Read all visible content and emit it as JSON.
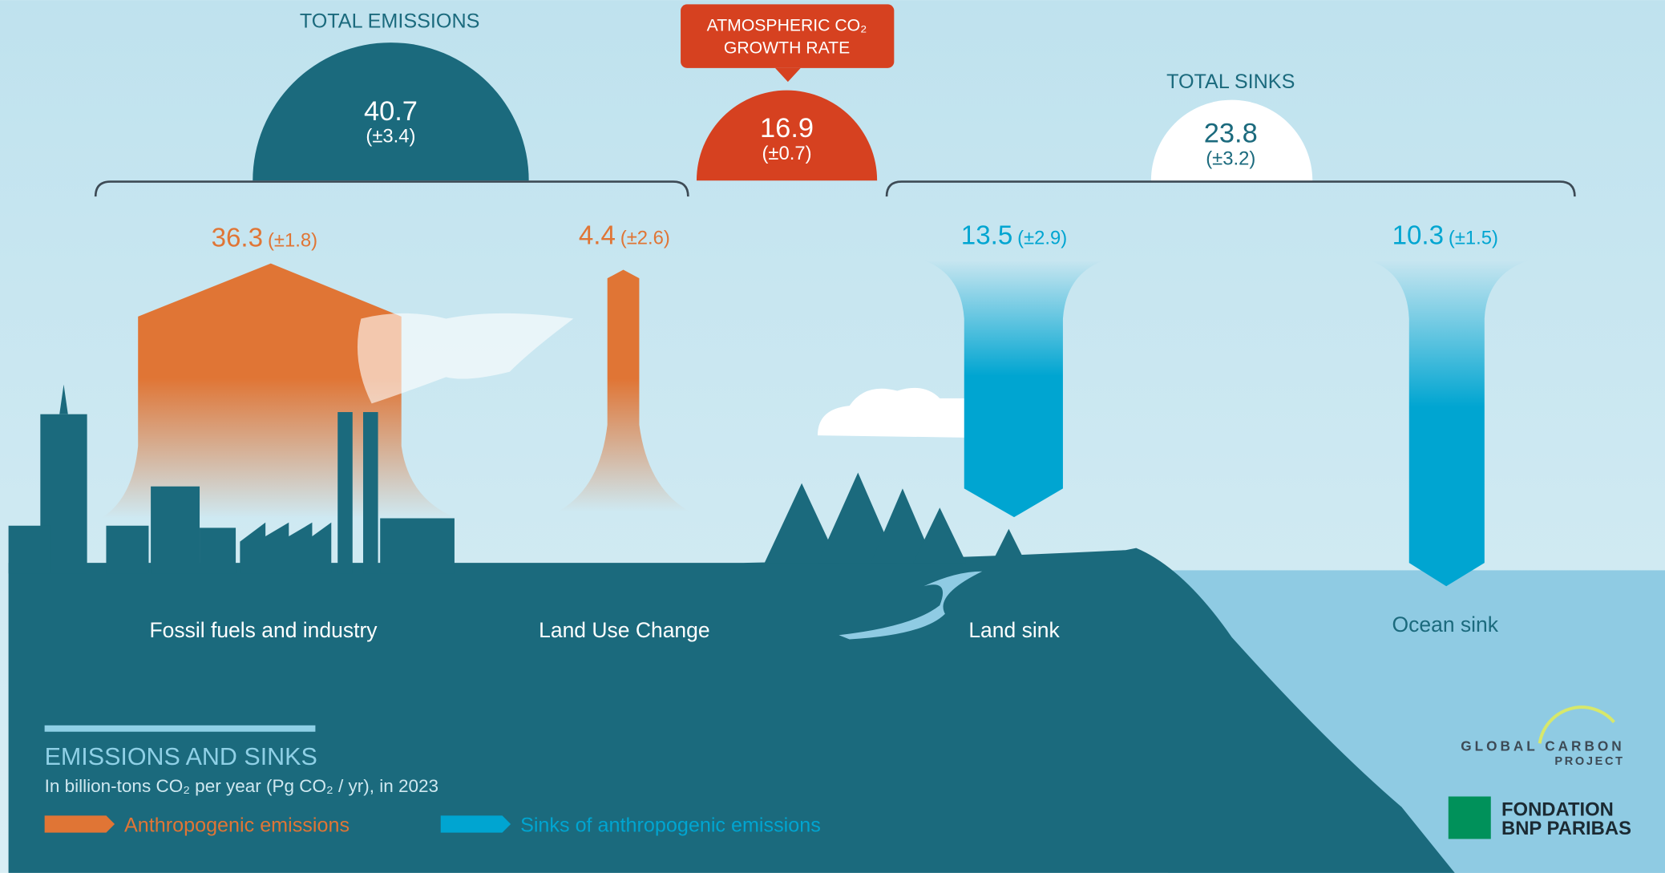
{
  "total_emissions": {
    "label": "TOTAL EMISSIONS",
    "value": 40.7,
    "uncertainty": "(±3.4)"
  },
  "growth_rate": {
    "label_lines": [
      "ATMOSPHERIC CO₂",
      "GROWTH RATE"
    ],
    "value": 16.9,
    "uncertainty": "(±0.7)"
  },
  "total_sinks": {
    "label": "TOTAL SINKS",
    "value": 23.8,
    "uncertainty": "(±3.2)"
  },
  "flows": [
    {
      "name": "Fossil fuels and industry",
      "value": 36.3,
      "uncertainty": "(±1.8)"
    },
    {
      "name": "Land Use Change",
      "value": 4.4,
      "uncertainty": "(±2.6)"
    },
    {
      "name": "Land sink",
      "value": 13.5,
      "uncertainty": "(±2.9)"
    },
    {
      "name": "Ocean sink",
      "value": 10.3,
      "uncertainty": "(±1.5)"
    }
  ],
  "legend": {
    "title": "EMISSIONS AND SINKS",
    "subtitle": "In billion-tons CO₂ per year (Pg CO₂ / yr), in 2023",
    "items": [
      "Anthropogenic emissions",
      "Sinks of anthropogenic emissions"
    ]
  },
  "logos": {
    "gcp_lines": [
      "GLOBAL CARBON",
      "PROJECT"
    ],
    "bnp_lines": [
      "FONDATION",
      "BNP PARIBAS"
    ]
  }
}
